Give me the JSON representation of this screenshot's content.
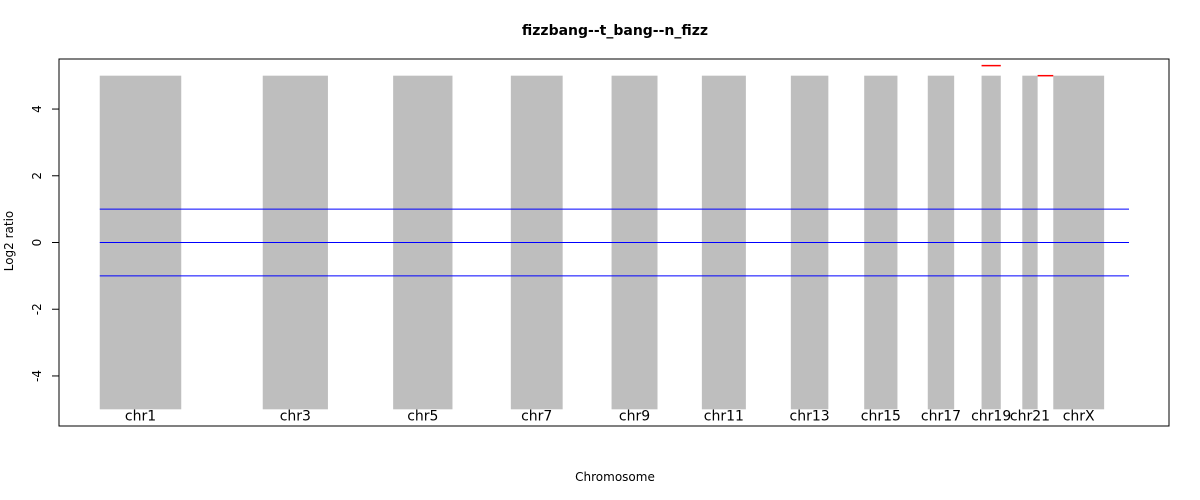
{
  "chart_data": {
    "type": "bar",
    "title": "fizzbang--t_bang--n_fizz",
    "xlabel": "Chromosome",
    "ylabel": "Log2 ratio",
    "ylim": [
      -5.5,
      5.5
    ],
    "yticks": [
      -4,
      -2,
      0,
      2,
      4
    ],
    "chromosome_bands": {
      "ymin": -5,
      "ymax": 5,
      "color": "#bebebe",
      "bands": [
        {
          "label": "chr1",
          "start": 0,
          "end": 250
        },
        {
          "label": "chr3",
          "start": 500,
          "end": 700
        },
        {
          "label": "chr5",
          "start": 900,
          "end": 1082
        },
        {
          "label": "chr7",
          "start": 1261,
          "end": 1420
        },
        {
          "label": "chr9",
          "start": 1570,
          "end": 1711
        },
        {
          "label": "chr11",
          "start": 1847,
          "end": 1982
        },
        {
          "label": "chr13",
          "start": 2120,
          "end": 2235
        },
        {
          "label": "chr15",
          "start": 2345,
          "end": 2447
        },
        {
          "label": "chr17",
          "start": 2540,
          "end": 2621
        },
        {
          "label": "chr19",
          "start": 2705,
          "end": 2764
        },
        {
          "label": "chr21",
          "start": 2830,
          "end": 2877
        },
        {
          "label": "chrX",
          "start": 2925,
          "end": 3081
        }
      ]
    },
    "reference_lines": {
      "color": "#0000ff",
      "values": [
        1,
        0,
        -1
      ]
    },
    "segments": {
      "color": "#ff0000",
      "items": [
        {
          "x0": 2705,
          "x1": 2764,
          "y": 5.3
        },
        {
          "x0": 2877,
          "x1": 2925,
          "y": 5.0
        }
      ]
    },
    "xlim": [
      -125,
      3280
    ]
  }
}
